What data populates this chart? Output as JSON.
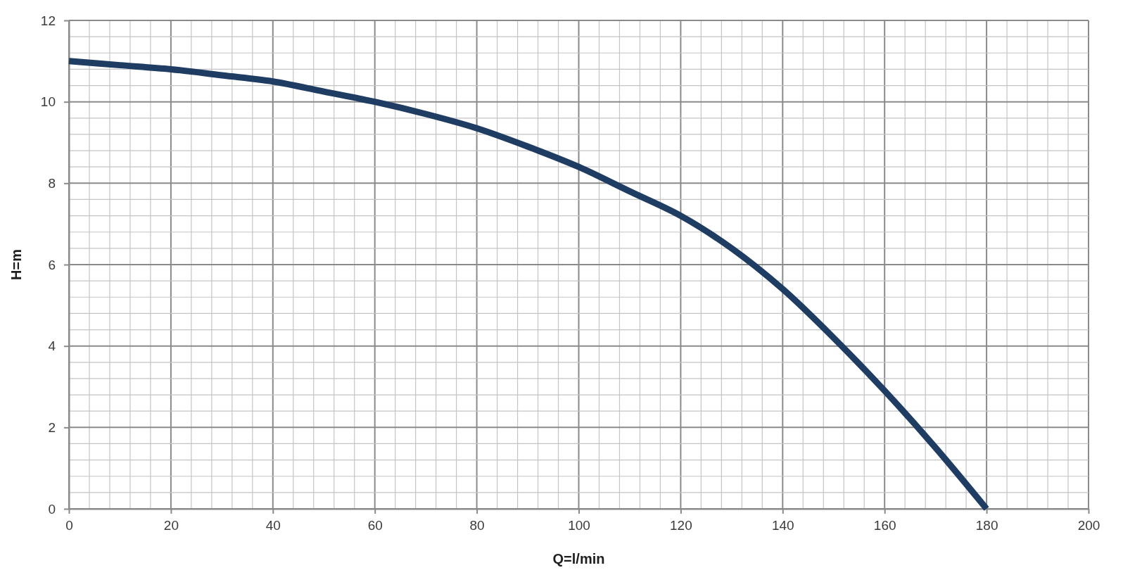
{
  "chart_data": {
    "type": "line",
    "xlabel": "Q=l/min",
    "ylabel": "H=m",
    "x": [
      0,
      10,
      20,
      30,
      40,
      50,
      60,
      70,
      80,
      90,
      100,
      110,
      120,
      130,
      140,
      150,
      160,
      170,
      180
    ],
    "series": [
      {
        "color": "#1f3d63",
        "values": [
          11.0,
          10.9,
          10.8,
          10.65,
          10.5,
          10.25,
          10.0,
          9.7,
          9.35,
          8.9,
          8.4,
          7.8,
          7.2,
          6.4,
          5.4,
          4.2,
          2.9,
          1.5,
          0
        ]
      }
    ],
    "xlim": [
      0,
      200
    ],
    "xticks": [
      0,
      {
        "value": 4,
        "label": null
      },
      {
        "value": 8,
        "label": null
      },
      {
        "value": 12,
        "label": null
      },
      {
        "value": 16,
        "label": null
      },
      20,
      {
        "value": 24,
        "label": null
      },
      {
        "value": 28,
        "label": null
      },
      {
        "value": 32,
        "label": null
      },
      {
        "value": 36,
        "label": null
      },
      40,
      {
        "value": 44,
        "label": null
      },
      {
        "value": 48,
        "label": null
      },
      {
        "value": 52,
        "label": null
      },
      {
        "value": 56,
        "label": null
      },
      60,
      {
        "value": 64,
        "label": null
      },
      {
        "value": 68,
        "label": null
      },
      {
        "value": 72,
        "label": null
      },
      {
        "value": 76,
        "label": null
      },
      80,
      {
        "value": 84,
        "label": null
      },
      {
        "value": 88,
        "label": null
      },
      {
        "value": 92,
        "label": null
      },
      {
        "value": 96,
        "label": null
      },
      100,
      {
        "value": 104,
        "label": null
      },
      {
        "value": 108,
        "label": null
      },
      {
        "value": 112,
        "label": null
      },
      {
        "value": 116,
        "label": null
      },
      120,
      {
        "value": 124,
        "label": null
      },
      {
        "value": 128,
        "label": null
      },
      {
        "value": 132,
        "label": null
      },
      {
        "value": 136,
        "label": null
      },
      140,
      {
        "value": 144,
        "label": null
      },
      {
        "value": 148,
        "label": null
      },
      {
        "value": 152,
        "label": null
      },
      {
        "value": 156,
        "label": null
      },
      160,
      {
        "value": 164,
        "label": null
      },
      {
        "value": 168,
        "label": null
      },
      {
        "value": 172,
        "label": null
      },
      {
        "value": 176,
        "label": null
      },
      180,
      {
        "value": 184,
        "label": null
      },
      {
        "value": 188,
        "label": null
      },
      {
        "value": 192,
        "label": null
      },
      {
        "value": 196,
        "label": null
      },
      200
    ],
    "ylim": [
      0,
      12
    ],
    "yticks": [
      0,
      {
        "value": 0.4,
        "label": null
      },
      {
        "value": 0.8,
        "label": null
      },
      {
        "value": 1.2,
        "label": null
      },
      {
        "value": 1.6,
        "label": null
      },
      2,
      {
        "value": 2.4,
        "label": null
      },
      {
        "value": 2.8,
        "label": null
      },
      {
        "value": 3.2,
        "label": null
      },
      {
        "value": 3.6,
        "label": null
      },
      4,
      {
        "value": 4.4,
        "label": null
      },
      {
        "value": 4.8,
        "label": null
      },
      {
        "value": 5.2,
        "label": null
      },
      {
        "value": 5.6,
        "label": null
      },
      6,
      {
        "value": 6.4,
        "label": null
      },
      {
        "value": 6.8,
        "label": null
      },
      {
        "value": 7.2,
        "label": null
      },
      {
        "value": 7.6,
        "label": null
      },
      8,
      {
        "value": 8.4,
        "label": null
      },
      {
        "value": 8.8,
        "label": null
      },
      {
        "value": 9.2,
        "label": null
      },
      {
        "value": 9.6,
        "label": null
      },
      10,
      {
        "value": 10.4,
        "label": null
      },
      {
        "value": 10.8,
        "label": null
      },
      {
        "value": 11.2,
        "label": null
      },
      {
        "value": 11.6,
        "label": null
      },
      12
    ],
    "grid": true
  }
}
